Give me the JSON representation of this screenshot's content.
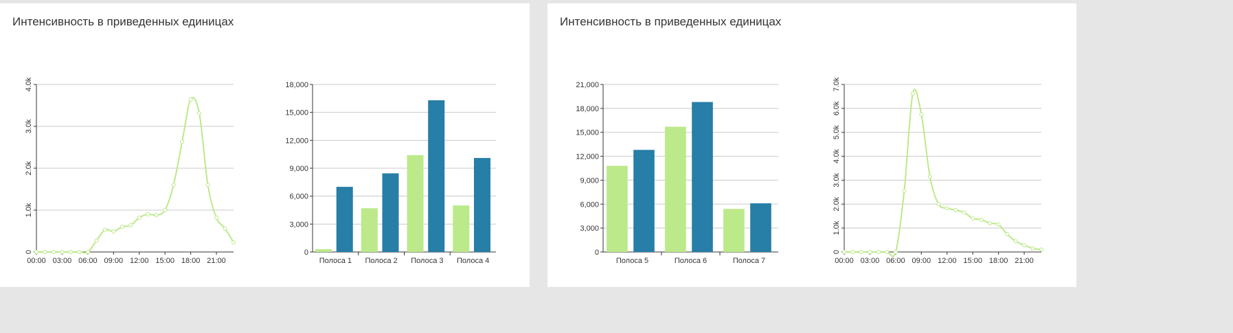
{
  "panels": [
    {
      "title": "Интенсивность в приведенных единицах"
    },
    {
      "title": "Интенсивность в приведенных единицах"
    }
  ],
  "colors": {
    "green": "#bce98a",
    "blue": "#277ea6",
    "grid": "#c8c8c8",
    "axis": "#333333"
  },
  "chart_data": [
    {
      "type": "line",
      "ylim": [
        0,
        4000
      ],
      "yticks": [
        "0",
        "1.0k",
        "2.0k",
        "3.0k",
        "4.0k"
      ],
      "xticks": [
        "00:00",
        "03:00",
        "06:00",
        "09:00",
        "12:00",
        "15:00",
        "18:00",
        "21:00"
      ],
      "x": [
        0,
        1,
        2,
        3,
        4,
        5,
        6,
        7,
        8,
        9,
        10,
        11,
        12,
        13,
        14,
        15,
        16,
        17,
        18,
        19,
        20,
        21,
        22,
        23
      ],
      "values": [
        0,
        0,
        0,
        0,
        0,
        0,
        0,
        270,
        530,
        490,
        600,
        640,
        820,
        900,
        880,
        1000,
        1600,
        2630,
        3640,
        3310,
        1600,
        820,
        560,
        230
      ],
      "grid": true
    },
    {
      "type": "bar",
      "ylim": [
        0,
        18000
      ],
      "yticks": [
        "0",
        "3,000",
        "6,000",
        "9,000",
        "12,000",
        "15,000",
        "18,000"
      ],
      "categories": [
        "Полоса 1",
        "Полоса 2",
        "Полоса 3",
        "Полоса 4"
      ],
      "series": [
        {
          "values": [
            300,
            4700,
            10400,
            5000
          ]
        },
        {
          "values": [
            7000,
            8450,
            16300,
            10100
          ]
        }
      ],
      "grid": true
    },
    {
      "type": "bar",
      "ylim": [
        0,
        21000
      ],
      "yticks": [
        "0",
        "3,000",
        "6,000",
        "9,000",
        "12,000",
        "15,000",
        "18,000",
        "21,000"
      ],
      "categories": [
        "Полоса 5",
        "Полоса 6",
        "Полоса 7"
      ],
      "series": [
        {
          "values": [
            10800,
            15700,
            5400
          ]
        },
        {
          "values": [
            12800,
            18800,
            6100
          ]
        }
      ],
      "grid": true
    },
    {
      "type": "line",
      "ylim": [
        0,
        7000
      ],
      "yticks": [
        "0",
        "1.0k",
        "2.0k",
        "3.0k",
        "4.0k",
        "5.0k",
        "6.0k",
        "7.0k"
      ],
      "xticks": [
        "00:00",
        "03:00",
        "06:00",
        "09:00",
        "12:00",
        "15:00",
        "18:00",
        "21:00"
      ],
      "x": [
        0,
        1,
        2,
        3,
        4,
        5,
        6,
        7,
        8,
        9,
        10,
        11,
        12,
        13,
        14,
        15,
        16,
        17,
        18,
        19,
        20,
        21,
        22,
        23
      ],
      "values": [
        0,
        0,
        0,
        0,
        0,
        0,
        0,
        2550,
        6620,
        5750,
        3150,
        2000,
        1830,
        1750,
        1650,
        1400,
        1350,
        1200,
        1150,
        750,
        450,
        280,
        150,
        100
      ],
      "grid": true
    }
  ]
}
